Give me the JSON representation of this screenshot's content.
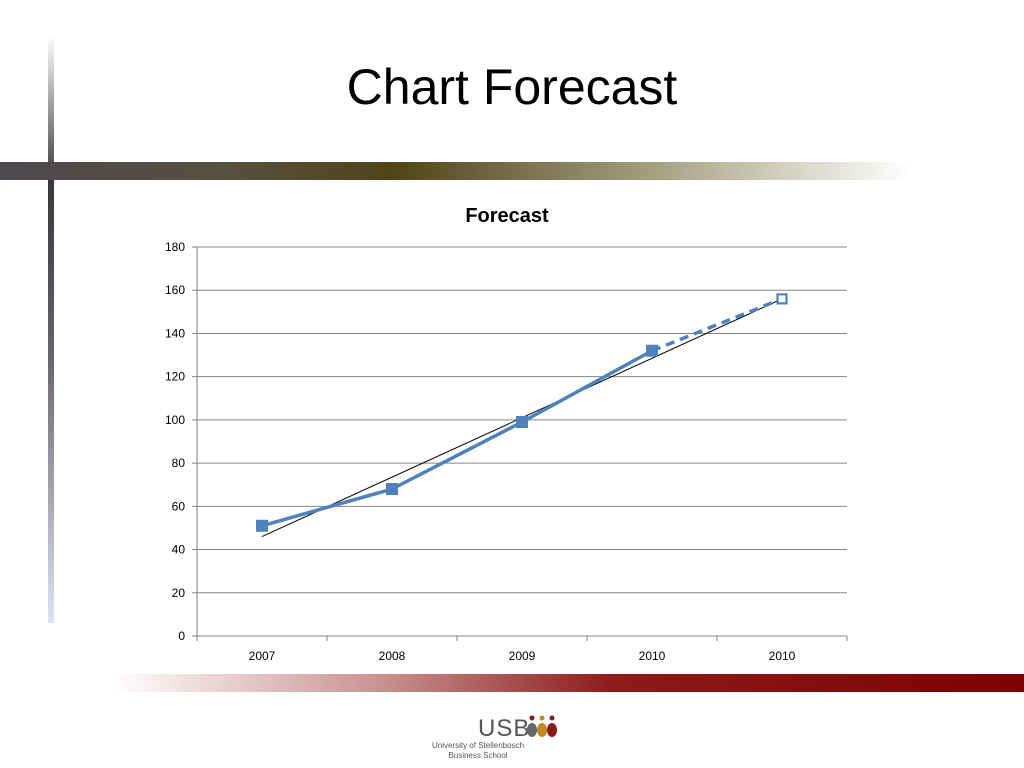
{
  "slide": {
    "title": "Chart Forecast"
  },
  "logo": {
    "name": "USB",
    "line1": "University of Stellenbosch",
    "line2": "Business School"
  },
  "colors": {
    "series": "#4f81bd",
    "trendline": "#000000",
    "gridline": "#868686",
    "accent_red": "#7f0000"
  },
  "chart_data": {
    "type": "line",
    "title": "Forecast",
    "categories": [
      "2007",
      "2008",
      "2009",
      "2010",
      "2010"
    ],
    "series": [
      {
        "values": [
          51,
          68,
          99,
          132,
          null
        ],
        "style": "solid",
        "marker": "filled-square"
      },
      {
        "values": [
          null,
          null,
          null,
          132,
          156
        ],
        "style": "dashed",
        "marker": "hollow-square"
      }
    ],
    "trendline": {
      "type": "linear",
      "from": 46,
      "to": 156
    },
    "ylim": [
      0,
      180
    ],
    "yticks": [
      0,
      20,
      40,
      60,
      80,
      100,
      120,
      140,
      160,
      180
    ],
    "grid": true,
    "legend": "none",
    "xlabel": "",
    "ylabel": ""
  }
}
